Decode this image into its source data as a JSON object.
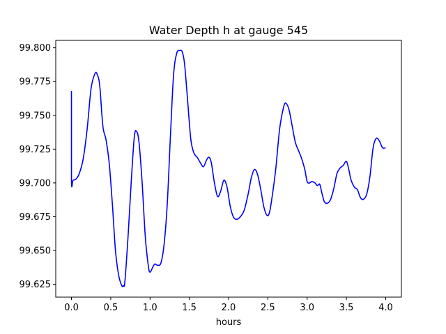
{
  "chart_data": {
    "type": "line",
    "title": "Water Depth h at gauge 545",
    "xlabel": "hours",
    "ylabel": "",
    "xlim": [
      -0.2,
      4.2
    ],
    "ylim": [
      99.6155,
      99.8055
    ],
    "grid": false,
    "xticks": [
      0.0,
      0.5,
      1.0,
      1.5,
      2.0,
      2.5,
      3.0,
      3.5,
      4.0
    ],
    "xtick_labels": [
      "0.0",
      "0.5",
      "1.0",
      "1.5",
      "2.0",
      "2.5",
      "3.0",
      "3.5",
      "4.0"
    ],
    "yticks": [
      99.625,
      99.65,
      99.675,
      99.7,
      99.725,
      99.75,
      99.775,
      99.8
    ],
    "ytick_labels": [
      "99.625",
      "99.650",
      "99.675",
      "99.700",
      "99.725",
      "99.750",
      "99.775",
      "99.800"
    ],
    "series": [
      {
        "color": "#0000ff",
        "x": [
          0.0,
          0.0,
          0.02,
          0.06,
          0.1,
          0.15,
          0.2,
          0.25,
          0.3,
          0.33,
          0.36,
          0.4,
          0.44,
          0.48,
          0.52,
          0.56,
          0.6,
          0.64,
          0.66,
          0.68,
          0.72,
          0.76,
          0.8,
          0.83,
          0.86,
          0.9,
          0.94,
          0.98,
          1.0,
          1.03,
          1.06,
          1.1,
          1.14,
          1.18,
          1.22,
          1.26,
          1.3,
          1.34,
          1.38,
          1.41,
          1.44,
          1.48,
          1.52,
          1.56,
          1.6,
          1.64,
          1.68,
          1.72,
          1.75,
          1.78,
          1.82,
          1.86,
          1.9,
          1.94,
          1.98,
          2.02,
          2.06,
          2.1,
          2.15,
          2.2,
          2.25,
          2.29,
          2.33,
          2.37,
          2.41,
          2.45,
          2.49,
          2.52,
          2.55,
          2.6,
          2.65,
          2.7,
          2.73,
          2.77,
          2.81,
          2.85,
          2.89,
          2.93,
          2.97,
          3.0,
          3.03,
          3.06,
          3.1,
          3.13,
          3.16,
          3.19,
          3.22,
          3.26,
          3.3,
          3.34,
          3.38,
          3.42,
          3.46,
          3.5,
          3.53,
          3.56,
          3.6,
          3.64,
          3.68,
          3.72,
          3.76,
          3.8,
          3.84,
          3.88,
          3.92,
          3.96,
          4.0
        ],
        "y": [
          99.768,
          99.702,
          99.702,
          99.703,
          99.707,
          99.718,
          99.74,
          99.77,
          99.781,
          99.78,
          99.772,
          99.742,
          99.732,
          99.715,
          99.685,
          99.65,
          99.632,
          99.624,
          99.624,
          99.627,
          99.66,
          99.7,
          99.734,
          99.738,
          99.73,
          99.7,
          99.66,
          99.638,
          99.634,
          99.637,
          99.64,
          99.639,
          99.641,
          99.655,
          99.685,
          99.735,
          99.78,
          99.796,
          99.798,
          99.797,
          99.788,
          99.76,
          99.732,
          99.722,
          99.719,
          99.715,
          99.712,
          99.717,
          99.719,
          99.715,
          99.7,
          99.69,
          99.694,
          99.702,
          99.697,
          99.683,
          99.675,
          99.673,
          99.675,
          99.68,
          99.692,
          99.704,
          99.71,
          99.706,
          99.695,
          99.682,
          99.676,
          99.678,
          99.688,
          99.71,
          99.74,
          99.756,
          99.759,
          99.754,
          99.742,
          99.73,
          99.724,
          99.718,
          99.71,
          99.701,
          99.7,
          99.701,
          99.7,
          99.698,
          99.699,
          99.692,
          99.686,
          99.685,
          99.688,
          99.696,
          99.707,
          99.711,
          99.713,
          99.716,
          99.71,
          99.702,
          99.697,
          99.695,
          99.689,
          99.688,
          99.692,
          99.705,
          99.726,
          99.733,
          99.731,
          99.726,
          99.726
        ]
      }
    ]
  }
}
